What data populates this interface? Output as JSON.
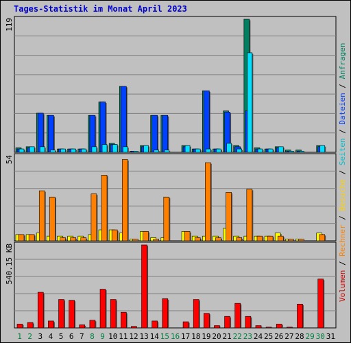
{
  "title": "Tages-Statistik im Monat April 2023",
  "colors": {
    "background": "#c0c0c0",
    "grid": "#808080",
    "hits": "#008060",
    "files": "#00c0d0",
    "pages": "#00e0ff",
    "visits": "#ff8000",
    "sites": "#ffff00",
    "kbytes": "#ff0000",
    "visits_blue": "#0040ff",
    "weekday_label": "#000000",
    "weekend_label": "#008040"
  },
  "legend_right": [
    {
      "label": "Volumen",
      "color": "#cc0000"
    },
    {
      "label": "Rechner",
      "color": "#ff8000"
    },
    {
      "label": "Besuche",
      "color": "#ffd000"
    },
    {
      "label": "Seiten",
      "color": "#00c0d0"
    },
    {
      "label": "Dateien",
      "color": "#0040ff"
    },
    {
      "label": "Anfragen",
      "color": "#008060"
    }
  ],
  "chart_data": [
    {
      "type": "bar",
      "panel": "top",
      "ymax_label": "119",
      "ylim": [
        0,
        119
      ],
      "categories": [
        "1",
        "2",
        "3",
        "4",
        "5",
        "6",
        "7",
        "8",
        "9",
        "10",
        "11",
        "12",
        "13",
        "14",
        "15",
        "16",
        "17",
        "18",
        "19",
        "20",
        "21",
        "22",
        "23",
        "24",
        "25",
        "26",
        "27",
        "28",
        "29",
        "30",
        "31"
      ],
      "weekend_days": [
        "1",
        "2",
        "8",
        "9",
        "15",
        "16",
        "22",
        "23",
        "29",
        "30"
      ],
      "series": [
        {
          "name": "Anfragen",
          "values": [
            4,
            5,
            35,
            33,
            3,
            3,
            3,
            33,
            45,
            8,
            59,
            1,
            6,
            33,
            33,
            0,
            6,
            3,
            55,
            3,
            37,
            6,
            119,
            4,
            3,
            5,
            2,
            2,
            0,
            6,
            0
          ]
        },
        {
          "name": "Dateien",
          "values": [
            3,
            4,
            35,
            33,
            3,
            3,
            3,
            33,
            45,
            7,
            59,
            1,
            5,
            33,
            33,
            0,
            5,
            3,
            55,
            3,
            36,
            5,
            37,
            3,
            3,
            4,
            1,
            1,
            0,
            5,
            0
          ]
        },
        {
          "name": "Seiten",
          "values": [
            3,
            5,
            5,
            2,
            3,
            3,
            3,
            5,
            7,
            7,
            5,
            1,
            6,
            2,
            2,
            0,
            6,
            3,
            3,
            3,
            8,
            3,
            89,
            3,
            3,
            5,
            1,
            1,
            0,
            6,
            0
          ]
        }
      ]
    },
    {
      "type": "bar",
      "panel": "middle",
      "ymax_label": "54",
      "ylim": [
        0,
        54
      ],
      "categories": [
        "1",
        "2",
        "3",
        "4",
        "5",
        "6",
        "7",
        "8",
        "9",
        "10",
        "11",
        "12",
        "13",
        "14",
        "15",
        "16",
        "17",
        "18",
        "19",
        "20",
        "21",
        "22",
        "23",
        "24",
        "25",
        "26",
        "27",
        "28",
        "29",
        "30",
        "31"
      ],
      "series": [
        {
          "name": "Besuche",
          "values": [
            4,
            4,
            5,
            3,
            3,
            3,
            3,
            4,
            7,
            7,
            5,
            1,
            6,
            2,
            2,
            0,
            6,
            3,
            3,
            3,
            8,
            3,
            3,
            3,
            3,
            5,
            1,
            1,
            0,
            5,
            0
          ]
        },
        {
          "name": "Rechner",
          "values": [
            4,
            4,
            32,
            28,
            2,
            2,
            2,
            30,
            42,
            7,
            52,
            1,
            6,
            1,
            28,
            0,
            6,
            2,
            50,
            2,
            31,
            2,
            33,
            3,
            3,
            3,
            1,
            1,
            0,
            4,
            0
          ]
        }
      ]
    },
    {
      "type": "bar",
      "panel": "bottom",
      "ymax_label": "540.15 KB",
      "ylim": [
        0,
        540.15
      ],
      "categories": [
        "1",
        "2",
        "3",
        "4",
        "5",
        "6",
        "7",
        "8",
        "9",
        "10",
        "11",
        "12",
        "13",
        "14",
        "15",
        "16",
        "17",
        "18",
        "19",
        "20",
        "21",
        "22",
        "23",
        "24",
        "25",
        "26",
        "27",
        "28",
        "29",
        "30",
        "31"
      ],
      "series": [
        {
          "name": "Volumen",
          "values": [
            25,
            35,
            232,
            45,
            185,
            180,
            20,
            50,
            252,
            185,
            102,
            10,
            540.15,
            45,
            190,
            0,
            40,
            185,
            95,
            15,
            75,
            160,
            75,
            15,
            5,
            25,
            5,
            155,
            0,
            318,
            0
          ]
        }
      ]
    }
  ]
}
